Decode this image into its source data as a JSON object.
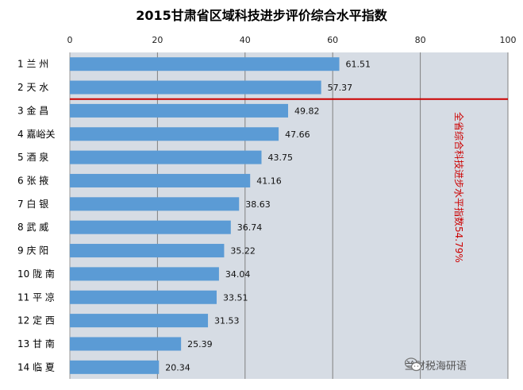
{
  "chart_data": {
    "type": "bar",
    "orientation": "horizontal",
    "title": "2015甘肃省区域科技进步评价综合水平指数",
    "categories": [
      "1 兰 州",
      "2 天 水",
      "3 金 昌",
      "4 嘉峪关",
      "5 酒 泉",
      "6 张 掖",
      "7 白 银",
      "8 武 威",
      "9 庆 阳",
      "10 陇 南",
      "11 平 凉",
      "12 定 西",
      "13 甘 南",
      "14 临 夏"
    ],
    "values": [
      61.51,
      57.37,
      49.82,
      47.66,
      43.75,
      41.16,
      38.63,
      36.74,
      35.22,
      34.04,
      33.51,
      31.53,
      25.39,
      20.34
    ],
    "data_labels": [
      "61.51",
      "57.37",
      "49.82",
      "47.66",
      "43.75",
      "41.16",
      "38.63",
      "36.74",
      "35.22",
      "34.04",
      "33.51",
      "31.53",
      "25.39",
      "20.34"
    ],
    "x_ticks": [
      "0",
      "20",
      "40",
      "60",
      "80",
      "100"
    ],
    "xlim": [
      0,
      100
    ],
    "xaxis_position": "top",
    "grid": true,
    "reference_line": {
      "value": 54.79,
      "position_between_categories": [
        2,
        3
      ],
      "label": "全省综合科技进步水平指数54.79%",
      "color": "#cc0000"
    },
    "colors": {
      "bar": "#5b9bd5",
      "plot_bg": "#d6dce4",
      "grid": "#808080",
      "reference": "#cc0000"
    }
  },
  "watermark": {
    "text": "兰财税海研语",
    "icon": "wechat-icon"
  }
}
